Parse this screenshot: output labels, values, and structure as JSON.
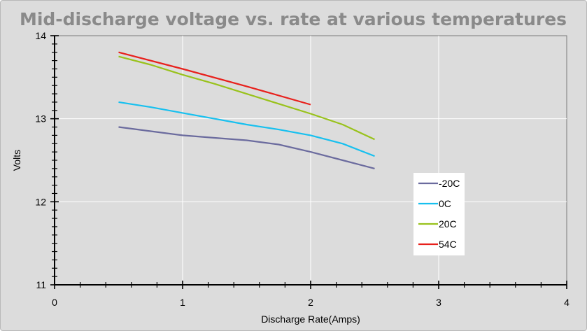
{
  "chart_data": {
    "type": "line",
    "title": "Mid-discharge voltage vs. rate at various temperatures",
    "xlabel": "Discharge Rate(Amps)",
    "ylabel": "Volts",
    "xlim": [
      0,
      4
    ],
    "ylim": [
      11,
      14
    ],
    "x_ticks": [
      0,
      1,
      2,
      3,
      4
    ],
    "y_ticks": [
      11,
      12,
      13,
      14
    ],
    "grid": true,
    "legend_position": "right",
    "series": [
      {
        "name": "-20C",
        "color": "#6b6b9e",
        "x": [
          0.5,
          0.75,
          1.0,
          1.25,
          1.5,
          1.75,
          2.0,
          2.25,
          2.5
        ],
        "y": [
          12.9,
          12.85,
          12.8,
          12.77,
          12.74,
          12.69,
          12.6,
          12.5,
          12.4
        ]
      },
      {
        "name": "0C",
        "color": "#17c0ef",
        "x": [
          0.5,
          0.75,
          1.0,
          1.25,
          1.5,
          1.75,
          2.0,
          2.25,
          2.5
        ],
        "y": [
          13.2,
          13.14,
          13.07,
          13.0,
          12.93,
          12.87,
          12.8,
          12.7,
          12.55
        ]
      },
      {
        "name": "20C",
        "color": "#99c21c",
        "x": [
          0.5,
          0.75,
          1.0,
          1.25,
          1.5,
          1.75,
          2.0,
          2.25,
          2.5
        ],
        "y": [
          13.75,
          13.65,
          13.53,
          13.42,
          13.3,
          13.18,
          13.06,
          12.93,
          12.75
        ]
      },
      {
        "name": "54C",
        "color": "#e8201c",
        "x": [
          0.5,
          1.0,
          1.5,
          2.0
        ],
        "y": [
          13.8,
          13.6,
          13.39,
          13.17
        ]
      }
    ]
  }
}
